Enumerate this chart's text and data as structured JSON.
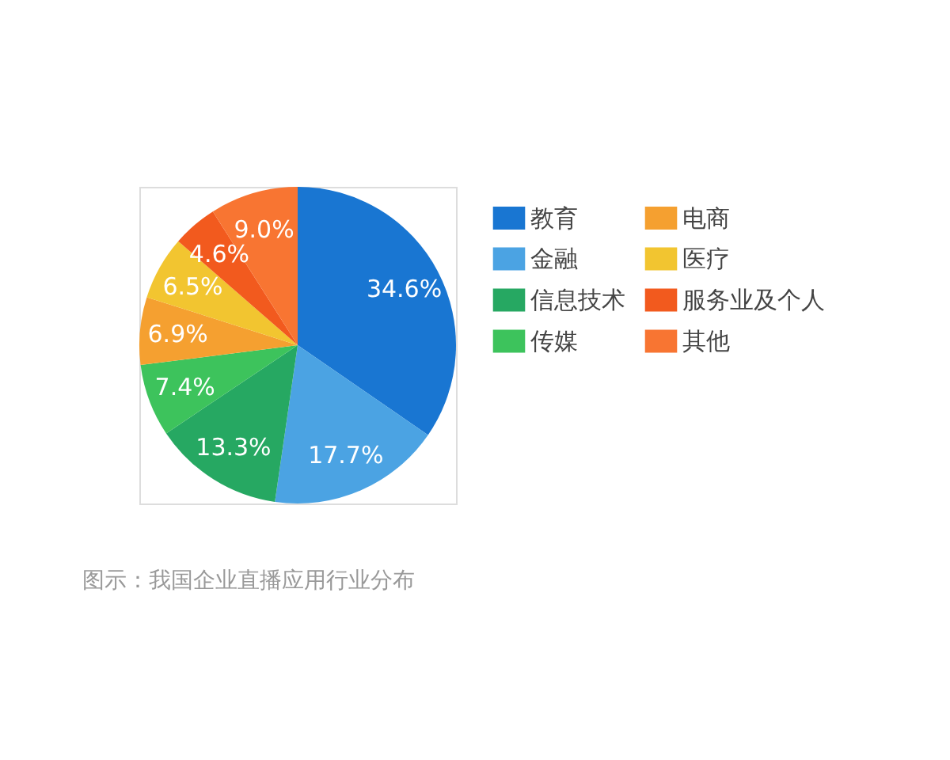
{
  "chart_data": {
    "type": "pie",
    "categories": [
      "教育",
      "金融",
      "信息技术",
      "传媒",
      "电商",
      "医疗",
      "服务业及个人",
      "其他"
    ],
    "values": [
      34.6,
      17.7,
      13.3,
      7.4,
      6.9,
      6.5,
      4.6,
      9.0
    ],
    "colors": [
      "#1976d2",
      "#4ba3e3",
      "#26a862",
      "#3dc35c",
      "#f5a030",
      "#f2c530",
      "#f25a1e",
      "#f87532"
    ],
    "value_labels": [
      "34.6%",
      "17.7%",
      "13.3%",
      "7.4%",
      "6.9%",
      "6.5%",
      "4.6%",
      "9.0%"
    ],
    "legend": "right",
    "annotations": [
      "图示：我国企业直播应用行业分布"
    ]
  }
}
